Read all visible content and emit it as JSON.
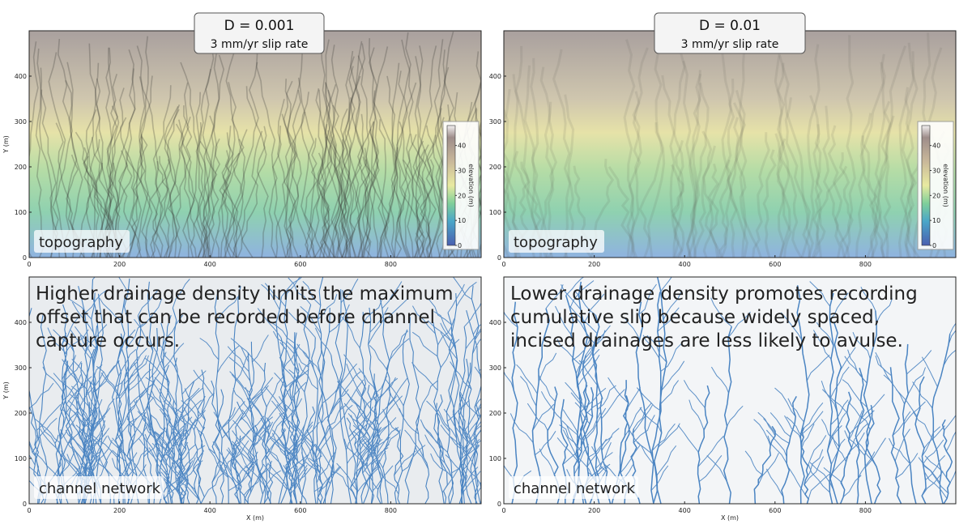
{
  "chart_data": [
    {
      "type": "map",
      "title": "D = 0.001",
      "subtitle": "3 mm/yr slip rate",
      "label": "topography",
      "ylabel": "Y (m)",
      "xlim": [
        0,
        1000
      ],
      "ylim": [
        0,
        500
      ],
      "xticks": [
        0,
        200,
        400,
        600,
        800
      ],
      "yticks": [
        0,
        100,
        200,
        300,
        400
      ],
      "colorbar": {
        "label": "elevation (m)",
        "lim": [
          0,
          48
        ],
        "ticks": [
          0,
          10,
          20,
          30,
          40
        ]
      }
    },
    {
      "type": "map",
      "title": "D = 0.01",
      "subtitle": "3 mm/yr slip rate",
      "label": "topography",
      "xlim": [
        0,
        1000
      ],
      "ylim": [
        0,
        500
      ],
      "xticks": [
        0,
        200,
        400,
        600,
        800
      ],
      "yticks": [
        0,
        100,
        200,
        300,
        400
      ],
      "colorbar": {
        "label": "elevation (m)",
        "lim": [
          0,
          48
        ],
        "ticks": [
          0,
          10,
          20,
          30,
          40
        ]
      }
    },
    {
      "type": "network",
      "label": "channel network",
      "ylabel": "Y (m)",
      "xlabel": "X (m)",
      "annotation": [
        "Higher drainage density limits the maximum",
        "offset that can be recorded before channel",
        "capture occurs."
      ],
      "xlim": [
        0,
        1000
      ],
      "ylim": [
        0,
        500
      ],
      "xticks": [
        0,
        200,
        400,
        600,
        800
      ],
      "yticks": [
        0,
        100,
        200,
        300,
        400
      ]
    },
    {
      "type": "network",
      "label": "channel network",
      "xlabel": "X (m)",
      "annotation": [
        "Lower drainage density promotes recording",
        "cumulative slip because widely spaced,",
        "incised drainages are less likely to avulse."
      ],
      "xlim": [
        0,
        1000
      ],
      "ylim": [
        0,
        500
      ],
      "xticks": [
        0,
        200,
        400,
        600,
        800
      ],
      "yticks": [
        0,
        100,
        200,
        300,
        400
      ]
    }
  ]
}
